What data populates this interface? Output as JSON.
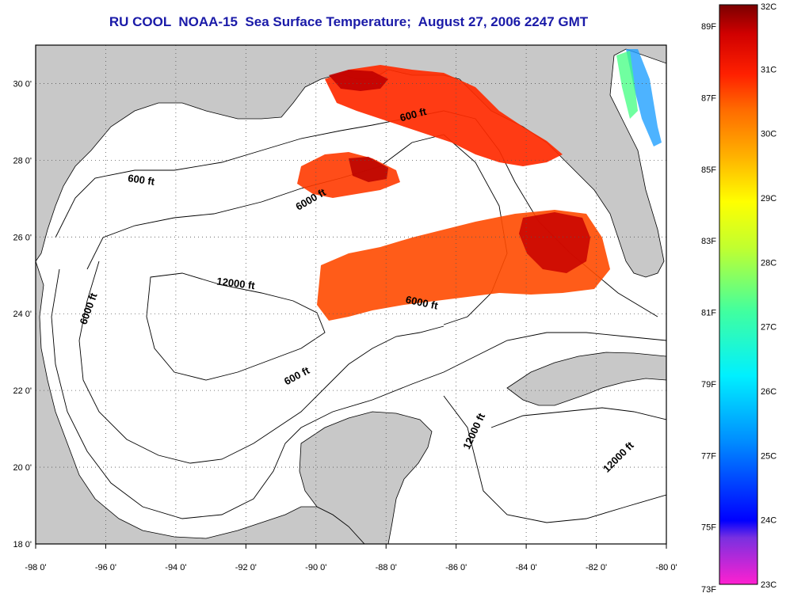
{
  "title": "RU COOL  NOAA-15  Sea Surface Temperature;  August 27, 2006 2247 GMT",
  "axes": {
    "lon_ticks": [
      "-98 0'",
      "-96 0'",
      "-94 0'",
      "-92 0'",
      "-90 0'",
      "-88 0'",
      "-86 0'",
      "-84 0'",
      "-82 0'",
      "-80 0'"
    ],
    "lat_ticks": [
      "30 0'",
      "28 0'",
      "26 0'",
      "24 0'",
      "22 0'",
      "20 0'",
      "18 0'"
    ],
    "lon_range": [
      -98,
      -80
    ],
    "lat_range": [
      18,
      31
    ],
    "grid": "dotted"
  },
  "contour_labels": [
    {
      "text": "600 ft",
      "lon": -95.0,
      "lat": 27.4,
      "angle": 8
    },
    {
      "text": "600 ft",
      "lon": -87.2,
      "lat": 29.1,
      "angle": -15
    },
    {
      "text": "6000 ft",
      "lon": -90.1,
      "lat": 26.9,
      "angle": -30
    },
    {
      "text": "12000 ft",
      "lon": -92.3,
      "lat": 24.7,
      "angle": 7
    },
    {
      "text": "6000 ft",
      "lon": -96.4,
      "lat": 24.1,
      "angle": -70
    },
    {
      "text": "6000 ft",
      "lon": -87.0,
      "lat": 24.2,
      "angle": 12
    },
    {
      "text": "600 ft",
      "lon": -90.5,
      "lat": 22.3,
      "angle": -28
    },
    {
      "text": "12000 ft",
      "lon": -85.4,
      "lat": 20.9,
      "angle": -65
    },
    {
      "text": "12000 ft",
      "lon": -81.3,
      "lat": 20.2,
      "angle": -45
    }
  ],
  "colorbar": {
    "fahrenheit_labels": [
      "89F",
      "87F",
      "85F",
      "83F",
      "81F",
      "79F",
      "77F",
      "75F",
      "73F"
    ],
    "celsius_labels": [
      "32C",
      "31C",
      "30C",
      "29C",
      "28C",
      "27C",
      "26C",
      "25C",
      "24C",
      "23C"
    ],
    "c_range": [
      23,
      32
    ],
    "colors": [
      "#ff20d0",
      "#7a30e0",
      "#0000ff",
      "#0090ff",
      "#00f0ff",
      "#40ffa0",
      "#c0ff30",
      "#ffff00",
      "#ffb000",
      "#ff6a00",
      "#ff2000",
      "#d00000",
      "#7a0000"
    ]
  },
  "colors": {
    "land": "#c8c8c8",
    "water": "#ffffff",
    "title": "#1a1aa8"
  }
}
